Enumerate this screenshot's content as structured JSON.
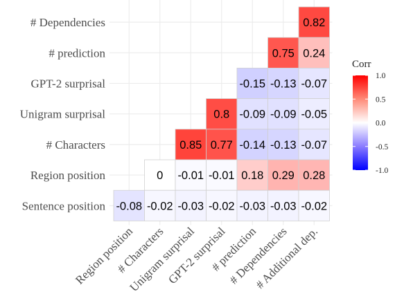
{
  "chart_data": {
    "type": "heatmap",
    "x_categories": [
      "Region position",
      "# Characters",
      "Unigram surprisal",
      "GPT-2 surprisal",
      "# prediction",
      "# Dependencies",
      "# Additional dep."
    ],
    "y_categories": [
      "# Dependencies",
      "# prediction",
      "GPT-2 surprisal",
      "Unigram surprisal",
      "# Characters",
      "Region position",
      "Sentence position"
    ],
    "cells": [
      [
        null,
        null,
        null,
        null,
        null,
        null,
        "0.82"
      ],
      [
        null,
        null,
        null,
        null,
        null,
        "0.75",
        "0.24"
      ],
      [
        null,
        null,
        null,
        null,
        "-0.15",
        "-0.13",
        "-0.07"
      ],
      [
        null,
        null,
        null,
        "0.8",
        "-0.09",
        "-0.09",
        "-0.05"
      ],
      [
        null,
        null,
        "0.85",
        "0.77",
        "-0.14",
        "-0.13",
        "-0.07"
      ],
      [
        null,
        "0",
        "-0.01",
        "-0.01",
        "0.18",
        "0.29",
        "0.28"
      ],
      [
        "-0.08",
        "-0.02",
        "-0.03",
        "-0.02",
        "-0.03",
        "-0.03",
        "-0.02"
      ]
    ],
    "color_scale": {
      "low": "#0000ff",
      "mid": "#ffffff",
      "high": "#ff0000",
      "limits": [
        -1.0,
        1.0
      ]
    },
    "legend": {
      "title": "Corr",
      "ticks": [
        "1.0",
        "0.5",
        "0.0",
        "-0.5",
        "-1.0"
      ],
      "placement": "right"
    },
    "grid": true
  }
}
